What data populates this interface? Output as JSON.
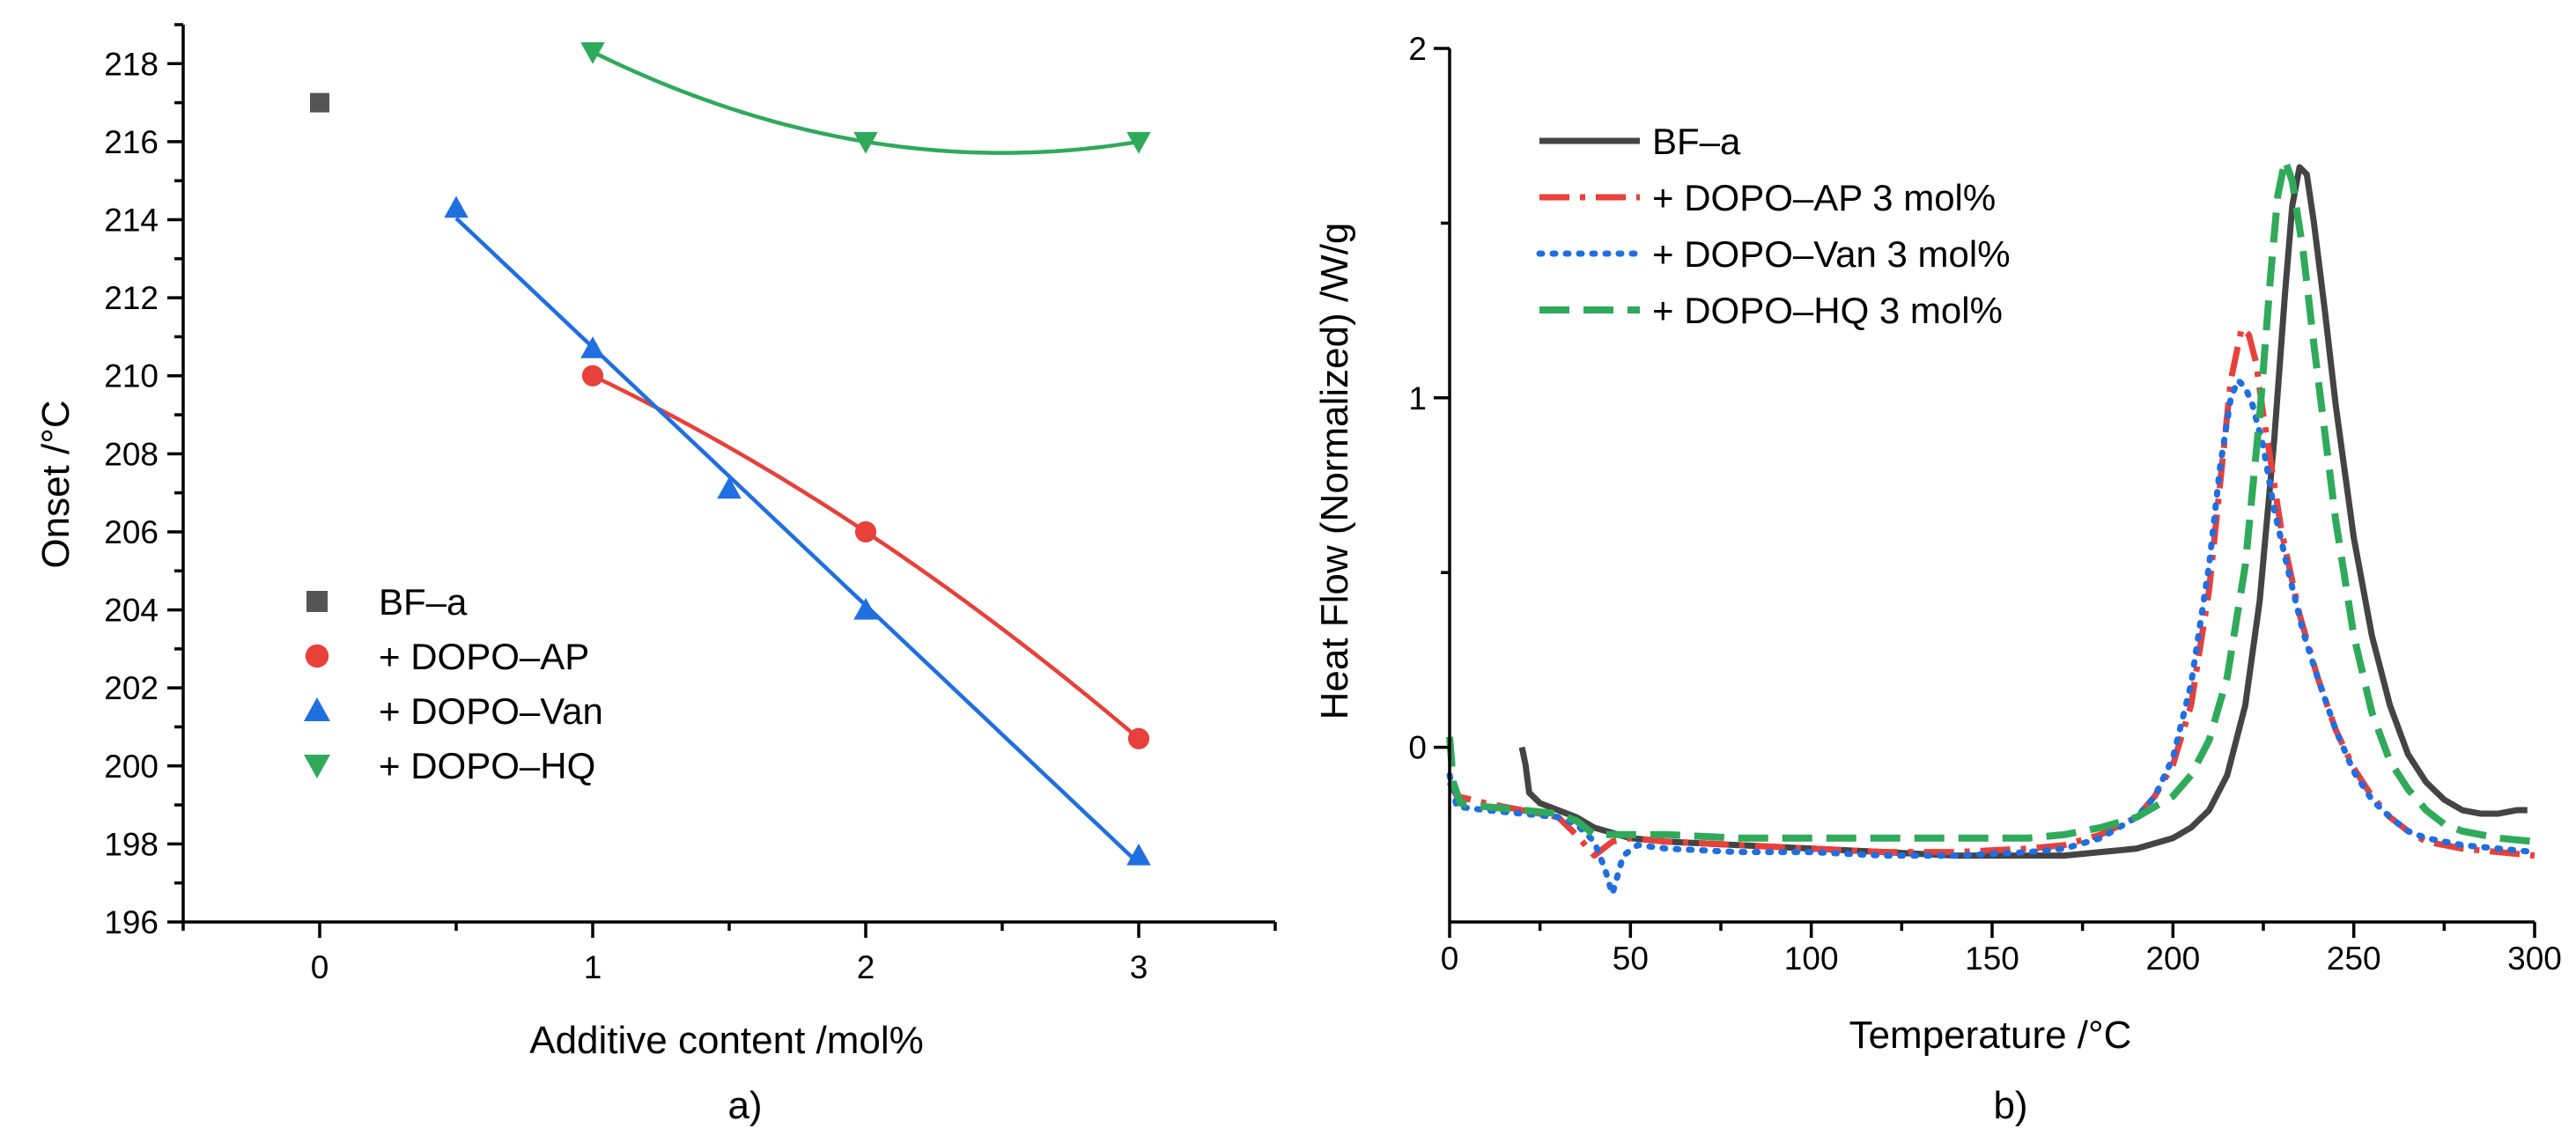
{
  "chart_data": [
    {
      "type": "scatter",
      "panel_label": "a)",
      "xlabel": "Additive content /mol%",
      "ylabel": "Onset /°C",
      "xlim": [
        -0.5,
        3.5
      ],
      "ylim": [
        196,
        219
      ],
      "xticks": [
        0,
        1,
        2,
        3
      ],
      "yticks": [
        196,
        198,
        200,
        202,
        204,
        206,
        208,
        210,
        212,
        214,
        216,
        218
      ],
      "legend_position": "center-left",
      "series": [
        {
          "name": "BF–a",
          "marker": "square",
          "color": "#555555",
          "fit": false,
          "x": [
            0
          ],
          "y": [
            217
          ]
        },
        {
          "name": "+ DOPO–AP",
          "marker": "circle",
          "color": "#e8403a",
          "fit": true,
          "x": [
            1,
            2,
            3
          ],
          "y": [
            210,
            206,
            200.7
          ]
        },
        {
          "name": "+ DOPO–Van",
          "marker": "triangle-up",
          "color": "#1f6fe0",
          "fit": true,
          "x": [
            0.5,
            1,
            1.5,
            2,
            3
          ],
          "y": [
            214.3,
            210.7,
            207.1,
            204,
            197.7
          ]
        },
        {
          "name": "+ DOPO–HQ",
          "marker": "triangle-down",
          "color": "#2faa5a",
          "fit": true,
          "x": [
            1,
            2,
            3
          ],
          "y": [
            218.3,
            216,
            216
          ]
        }
      ]
    },
    {
      "type": "line",
      "panel_label": "b)",
      "xlabel": "Temperature /°C",
      "ylabel": "Heat Flow (Normalized) /W/g",
      "xlim": [
        0,
        300
      ],
      "ylim": [
        -0.5,
        2
      ],
      "xticks": [
        0,
        50,
        100,
        150,
        200,
        250,
        300
      ],
      "yticks": [
        0,
        1,
        2
      ],
      "legend_position": "top-left",
      "series": [
        {
          "name": "BF–a",
          "style": "solid",
          "color": "#444444",
          "x": [
            20,
            21,
            22,
            25,
            30,
            35,
            40,
            50,
            60,
            80,
            100,
            120,
            140,
            160,
            170,
            180,
            190,
            200,
            205,
            210,
            215,
            220,
            224,
            228,
            231,
            233,
            235,
            237,
            239,
            242,
            245,
            250,
            255,
            260,
            265,
            270,
            275,
            280,
            285,
            290,
            295,
            298
          ],
          "y": [
            0,
            -0.05,
            -0.13,
            -0.16,
            -0.18,
            -0.2,
            -0.23,
            -0.26,
            -0.27,
            -0.28,
            -0.29,
            -0.3,
            -0.31,
            -0.31,
            -0.31,
            -0.3,
            -0.29,
            -0.26,
            -0.23,
            -0.18,
            -0.08,
            0.12,
            0.42,
            0.88,
            1.3,
            1.55,
            1.66,
            1.64,
            1.5,
            1.25,
            0.98,
            0.6,
            0.32,
            0.12,
            -0.02,
            -0.1,
            -0.15,
            -0.18,
            -0.19,
            -0.19,
            -0.18,
            -0.18
          ]
        },
        {
          "name": "+ DOPO–AP 3 mol%",
          "style": "dashdot",
          "color": "#e8403a",
          "x": [
            0,
            2,
            10,
            20,
            30,
            35,
            40,
            45,
            50,
            60,
            80,
            100,
            120,
            140,
            160,
            170,
            180,
            190,
            195,
            200,
            205,
            210,
            213,
            216,
            219,
            221,
            223,
            225,
            227,
            230,
            235,
            240,
            245,
            250,
            255,
            260,
            265,
            270,
            275,
            280,
            290,
            300
          ],
          "y": [
            -0.1,
            -0.14,
            -0.16,
            -0.18,
            -0.2,
            -0.25,
            -0.31,
            -0.27,
            -0.26,
            -0.27,
            -0.28,
            -0.29,
            -0.3,
            -0.3,
            -0.29,
            -0.28,
            -0.25,
            -0.2,
            -0.14,
            -0.05,
            0.12,
            0.45,
            0.75,
            1.05,
            1.2,
            1.18,
            1.1,
            0.95,
            0.82,
            0.62,
            0.38,
            0.2,
            0.05,
            -0.06,
            -0.14,
            -0.2,
            -0.24,
            -0.27,
            -0.28,
            -0.29,
            -0.3,
            -0.31
          ]
        },
        {
          "name": "+ DOPO–Van 3 mol%",
          "style": "dotted",
          "color": "#1f6fe0",
          "x": [
            0,
            2,
            10,
            20,
            30,
            35,
            40,
            43,
            45,
            48,
            52,
            60,
            80,
            100,
            120,
            140,
            160,
            170,
            180,
            190,
            195,
            200,
            205,
            210,
            213,
            216,
            218,
            220,
            222,
            225,
            228,
            232,
            236,
            240,
            245,
            250,
            255,
            260,
            265,
            270,
            275,
            280,
            290,
            300
          ],
          "y": [
            -0.08,
            -0.17,
            -0.18,
            -0.19,
            -0.2,
            -0.22,
            -0.27,
            -0.35,
            -0.42,
            -0.31,
            -0.28,
            -0.29,
            -0.3,
            -0.3,
            -0.31,
            -0.31,
            -0.3,
            -0.29,
            -0.26,
            -0.2,
            -0.14,
            -0.03,
            0.18,
            0.52,
            0.8,
            1.0,
            1.05,
            1.03,
            0.98,
            0.86,
            0.68,
            0.5,
            0.33,
            0.2,
            0.05,
            -0.07,
            -0.15,
            -0.2,
            -0.24,
            -0.26,
            -0.27,
            -0.28,
            -0.29,
            -0.3
          ]
        },
        {
          "name": "+ DOPO–HQ 3 mol%",
          "style": "dashed",
          "color": "#2faa5a",
          "x": [
            0,
            1,
            3,
            10,
            20,
            30,
            35,
            40,
            50,
            60,
            80,
            100,
            120,
            140,
            160,
            170,
            180,
            190,
            200,
            205,
            210,
            215,
            220,
            224,
            227,
            229,
            231,
            233,
            236,
            239,
            242,
            245,
            250,
            255,
            260,
            265,
            270,
            275,
            280,
            290,
            300
          ],
          "y": [
            0.03,
            -0.1,
            -0.16,
            -0.17,
            -0.18,
            -0.19,
            -0.21,
            -0.25,
            -0.25,
            -0.25,
            -0.26,
            -0.26,
            -0.26,
            -0.26,
            -0.26,
            -0.25,
            -0.23,
            -0.2,
            -0.14,
            -0.08,
            0.02,
            0.2,
            0.52,
            0.95,
            1.35,
            1.58,
            1.68,
            1.62,
            1.42,
            1.15,
            0.9,
            0.65,
            0.32,
            0.1,
            -0.04,
            -0.12,
            -0.18,
            -0.22,
            -0.24,
            -0.26,
            -0.27
          ]
        }
      ]
    }
  ]
}
